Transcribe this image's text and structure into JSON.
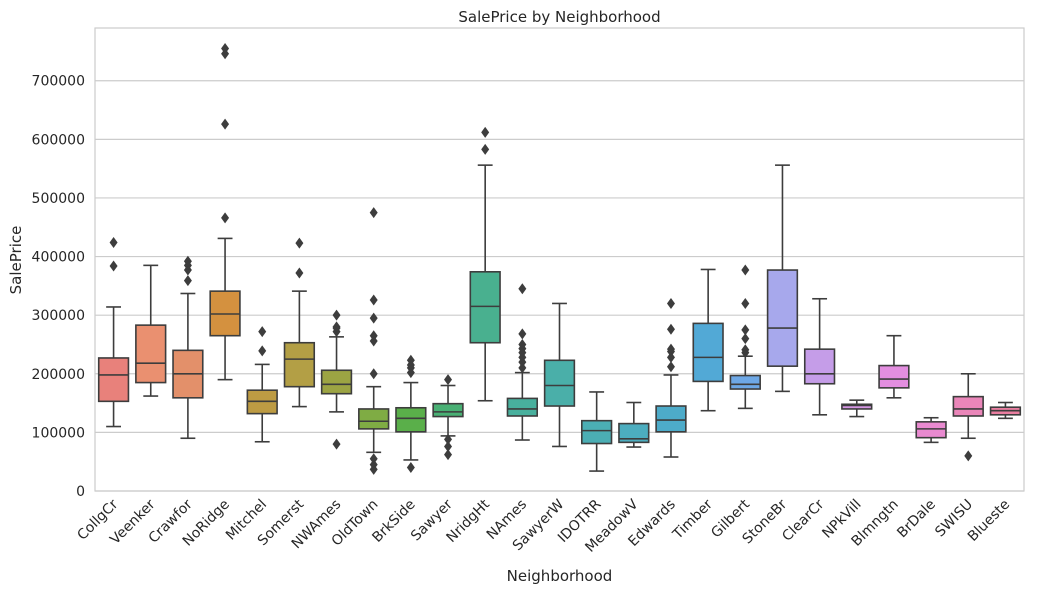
{
  "chart_data": {
    "type": "box",
    "title": "SalePrice by Neighborhood",
    "xlabel": "Neighborhood",
    "ylabel": "SalePrice",
    "ylim": [
      0,
      790000
    ],
    "yticks": [
      "0",
      "100000",
      "200000",
      "300000",
      "400000",
      "500000",
      "600000",
      "700000"
    ],
    "ytick_values": [
      0,
      100000,
      200000,
      300000,
      400000,
      500000,
      600000,
      700000
    ],
    "grid": true,
    "legend": "none",
    "boxes": [
      {
        "label": "CollgCr",
        "color": "#e8817b",
        "whisker_low": 110000,
        "q1": 153000,
        "median": 198000,
        "q3": 227000,
        "whisker_high": 314000,
        "outliers": [
          384000,
          424000
        ]
      },
      {
        "label": "Veenker",
        "color": "#ea9070",
        "whisker_low": 162000,
        "q1": 185000,
        "median": 218000,
        "q3": 283000,
        "whisker_high": 385000,
        "outliers": []
      },
      {
        "label": "Crawfor",
        "color": "#e3906a",
        "whisker_low": 90000,
        "q1": 159000,
        "median": 200000,
        "q3": 240000,
        "whisker_high": 337000,
        "outliers": [
          359000,
          377000,
          385000,
          392000
        ]
      },
      {
        "label": "NoRidge",
        "color": "#d4913f",
        "whisker_low": 190000,
        "q1": 265000,
        "median": 302000,
        "q3": 341000,
        "whisker_high": 431000,
        "outliers": [
          466000,
          626000,
          746000,
          755000
        ]
      },
      {
        "label": "Mitchel",
        "color": "#bd9b43",
        "whisker_low": 84000,
        "q1": 132000,
        "median": 153000,
        "q3": 172000,
        "whisker_high": 216000,
        "outliers": [
          239000,
          272000
        ]
      },
      {
        "label": "Somerst",
        "color": "#b39f45",
        "whisker_low": 144000,
        "q1": 178000,
        "median": 225000,
        "q3": 253000,
        "whisker_high": 341000,
        "outliers": [
          372000,
          423000
        ]
      },
      {
        "label": "NWAmes",
        "color": "#9ca443",
        "whisker_low": 135000,
        "q1": 166000,
        "median": 182000,
        "q3": 206000,
        "whisker_high": 263000,
        "outliers": [
          80000,
          272000,
          278000,
          280000,
          300000
        ]
      },
      {
        "label": "OldTown",
        "color": "#7fac44",
        "whisker_low": 66000,
        "q1": 106000,
        "median": 119000,
        "q3": 140000,
        "whisker_high": 178000,
        "outliers": [
          37000,
          45000,
          55000,
          200000,
          256000,
          265000,
          295000,
          326000,
          475000
        ]
      },
      {
        "label": "BrkSide",
        "color": "#5aaf4a",
        "whisker_low": 53000,
        "q1": 101000,
        "median": 124000,
        "q3": 142000,
        "whisker_high": 185000,
        "outliers": [
          40000,
          202000,
          210000,
          215000,
          223000
        ]
      },
      {
        "label": "Sawyer",
        "color": "#49b074",
        "whisker_low": 94000,
        "q1": 127000,
        "median": 135000,
        "q3": 149000,
        "whisker_high": 180000,
        "outliers": [
          62000,
          76000,
          88000,
          190000
        ]
      },
      {
        "label": "NridgHt",
        "color": "#49b08f",
        "whisker_low": 154000,
        "q1": 253000,
        "median": 315000,
        "q3": 374000,
        "whisker_high": 556000,
        "outliers": [
          583000,
          612000
        ]
      },
      {
        "label": "NAmes",
        "color": "#48b09d",
        "whisker_low": 87000,
        "q1": 128000,
        "median": 140000,
        "q3": 158000,
        "whisker_high": 202000,
        "outliers": [
          210000,
          220000,
          228000,
          236000,
          243000,
          250000,
          268000,
          345000
        ]
      },
      {
        "label": "SawyerW",
        "color": "#4aafa9",
        "whisker_low": 76000,
        "q1": 145000,
        "median": 180000,
        "q3": 223000,
        "whisker_high": 320000,
        "outliers": []
      },
      {
        "label": "IDOTRR",
        "color": "#4baeb4",
        "whisker_low": 34000,
        "q1": 81000,
        "median": 103000,
        "q3": 120000,
        "whisker_high": 169000,
        "outliers": []
      },
      {
        "label": "MeadowV",
        "color": "#4cadbf",
        "whisker_low": 75000,
        "q1": 83000,
        "median": 89000,
        "q3": 115000,
        "whisker_high": 151000,
        "outliers": []
      },
      {
        "label": "Edwards",
        "color": "#4dabc9",
        "whisker_low": 58000,
        "q1": 101000,
        "median": 121000,
        "q3": 145000,
        "whisker_high": 198000,
        "outliers": [
          212000,
          228000,
          238000,
          242000,
          276000,
          320000
        ]
      },
      {
        "label": "Timber",
        "color": "#52a9d6",
        "whisker_low": 137000,
        "q1": 187000,
        "median": 228000,
        "q3": 286000,
        "whisker_high": 378000,
        "outliers": []
      },
      {
        "label": "Gilbert",
        "color": "#6ea8e6",
        "whisker_low": 141000,
        "q1": 174000,
        "median": 182000,
        "q3": 197000,
        "whisker_high": 230000,
        "outliers": [
          236000,
          241000,
          260000,
          275000,
          320000,
          377000
        ]
      },
      {
        "label": "StoneBr",
        "color": "#a7a8ec",
        "whisker_low": 170000,
        "q1": 213000,
        "median": 278000,
        "q3": 377000,
        "whisker_high": 556000,
        "outliers": []
      },
      {
        "label": "ClearCr",
        "color": "#c59de8",
        "whisker_low": 130000,
        "q1": 183000,
        "median": 200000,
        "q3": 242000,
        "whisker_high": 328000,
        "outliers": []
      },
      {
        "label": "NPkVill",
        "color": "#d597e3",
        "whisker_low": 127000,
        "q1": 140000,
        "median": 146000,
        "q3": 148000,
        "whisker_high": 155000,
        "outliers": []
      },
      {
        "label": "Blmngtn",
        "color": "#e38ee0",
        "whisker_low": 159000,
        "q1": 176000,
        "median": 191000,
        "q3": 214000,
        "whisker_high": 265000,
        "outliers": []
      },
      {
        "label": "BrDale",
        "color": "#e98ad0",
        "whisker_low": 83000,
        "q1": 91000,
        "median": 106000,
        "q3": 118000,
        "whisker_high": 125000,
        "outliers": []
      },
      {
        "label": "SWISU",
        "color": "#ea86b9",
        "whisker_low": 90000,
        "q1": 128000,
        "median": 140000,
        "q3": 161000,
        "whisker_high": 200000,
        "outliers": [
          60000
        ]
      },
      {
        "label": "Blueste",
        "color": "#e97ea0",
        "whisker_low": 124000,
        "q1": 130000,
        "median": 137000,
        "q3": 143000,
        "whisker_high": 151000,
        "outliers": []
      }
    ]
  }
}
